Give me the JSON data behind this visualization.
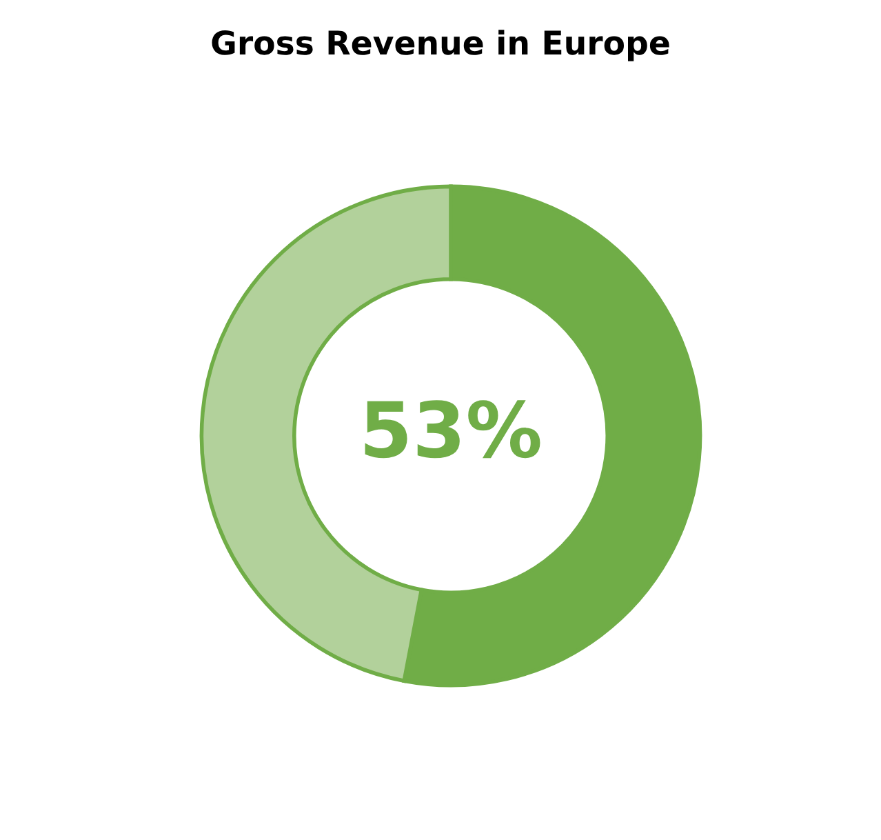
{
  "chart_data": {
    "type": "donut",
    "title": "Gross Revenue in Europe",
    "categories": [
      null,
      null
    ],
    "values": [
      53,
      47
    ],
    "colors": [
      "#70ad47",
      "#b2d19b"
    ],
    "annotations": [
      "53%"
    ]
  }
}
